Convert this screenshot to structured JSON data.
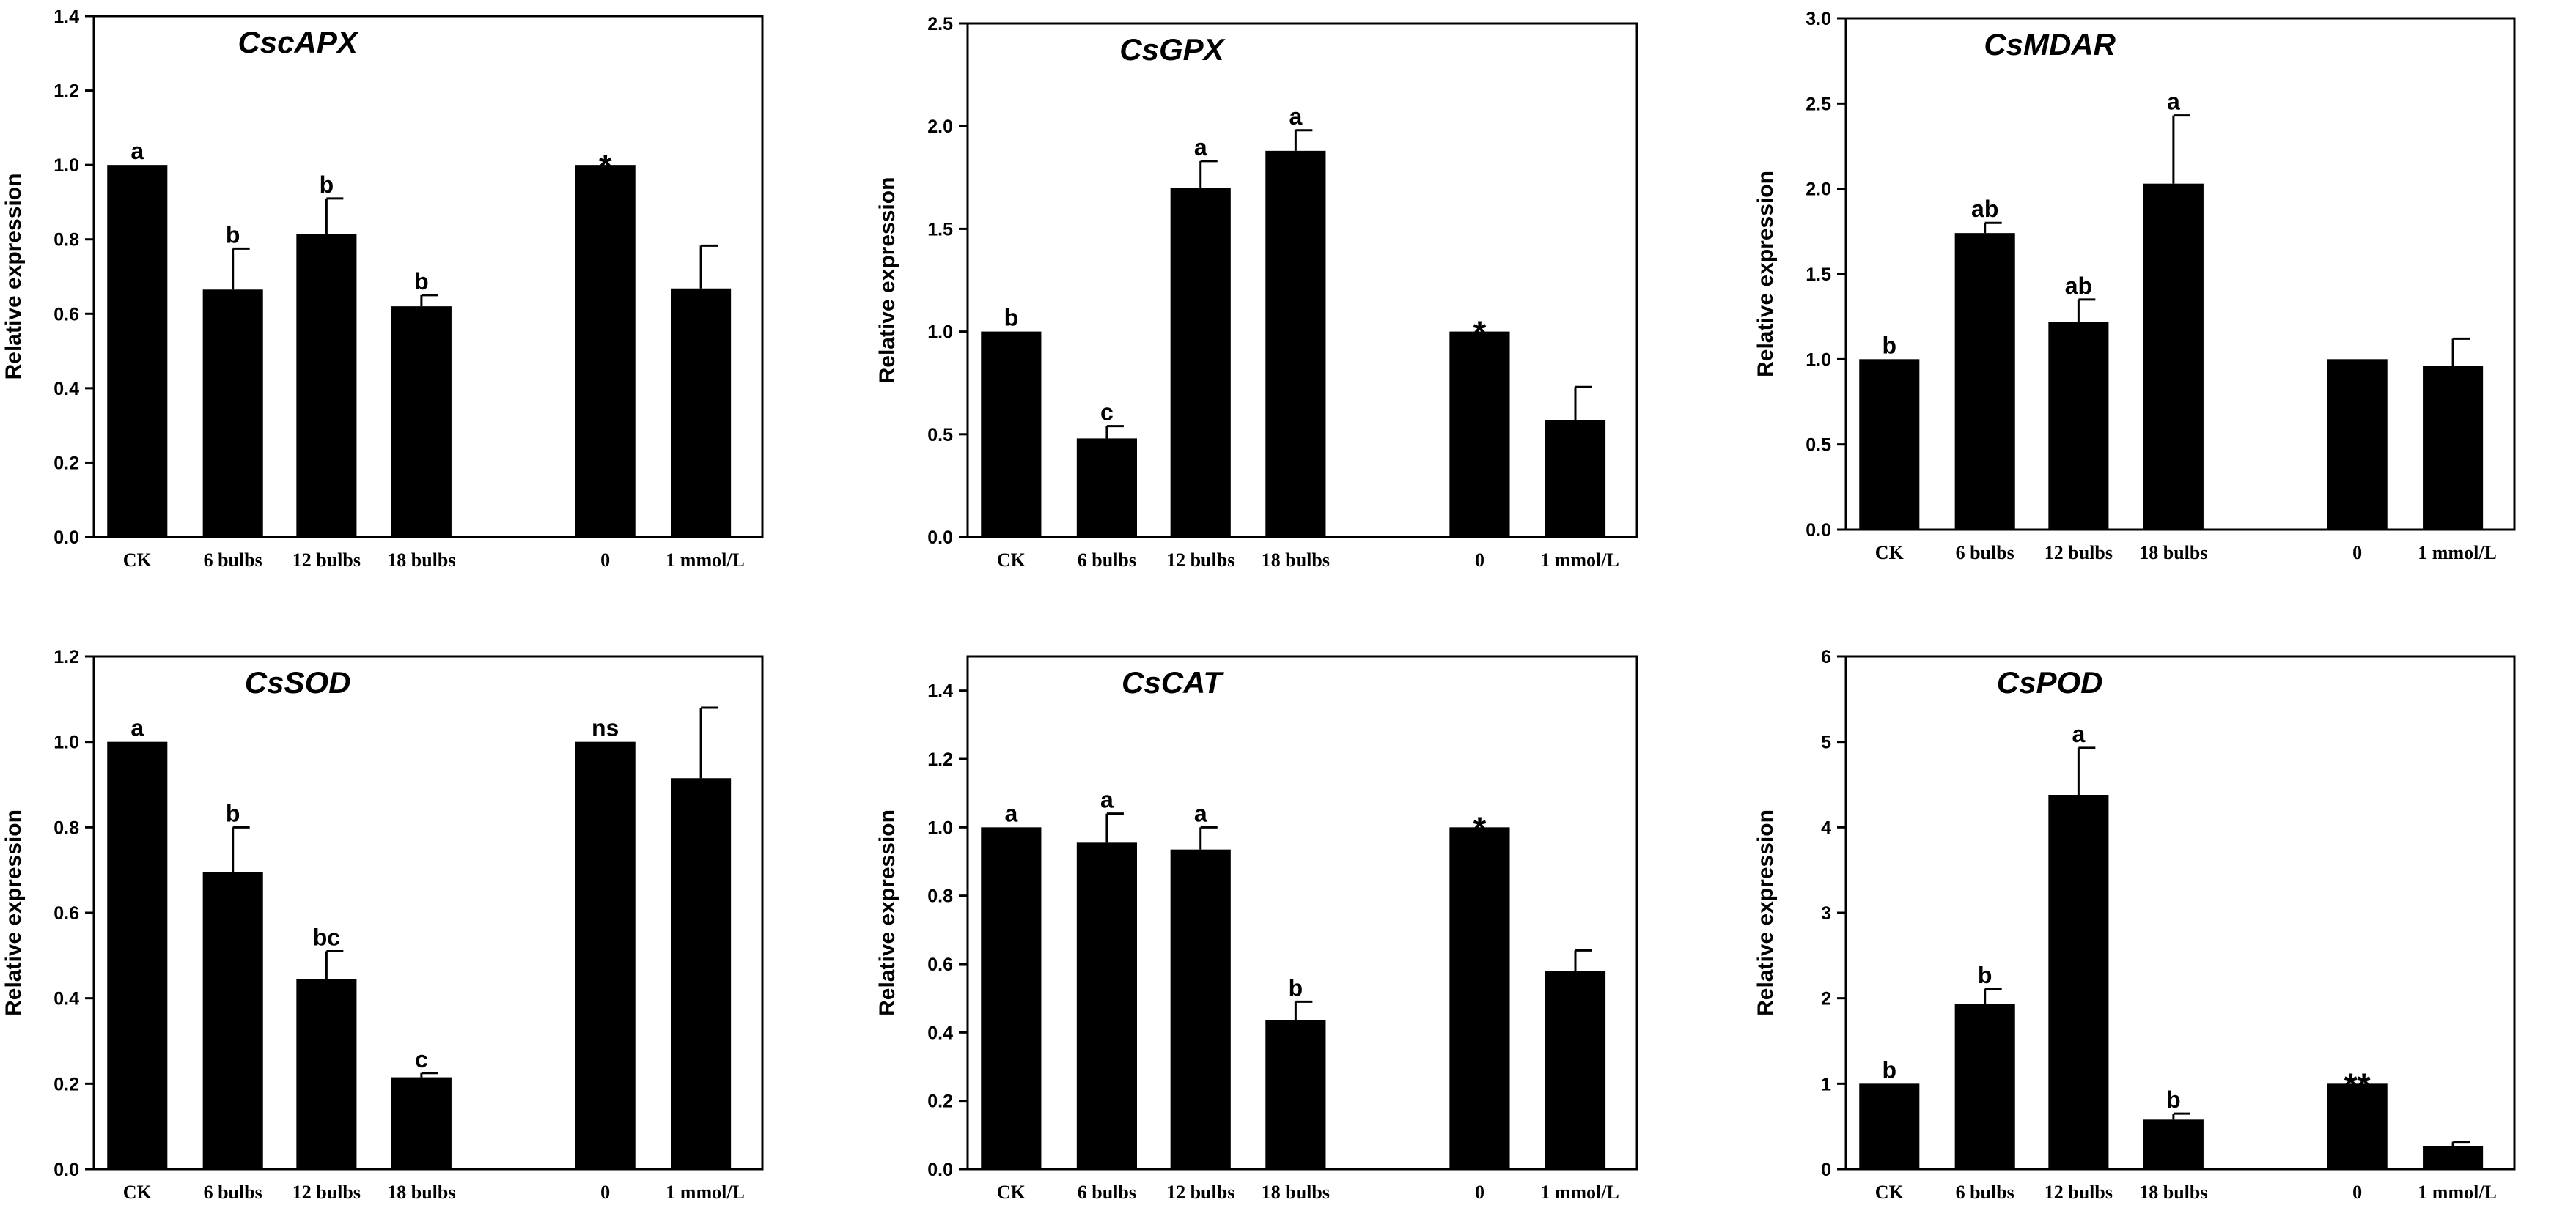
{
  "chart_data": [
    {
      "type": "bar",
      "title": "CscAPX",
      "xlabel": "",
      "ylabel": "Relative expression",
      "ylim": [
        0,
        1.4
      ],
      "yticks": [
        "0.0",
        "0.2",
        "0.4",
        "0.6",
        "0.8",
        "1.0",
        "1.2",
        "1.4"
      ],
      "categories": [
        "CK",
        "6 bulbs",
        "12 bulbs",
        "18 bulbs",
        "0",
        "1 mmol/L"
      ],
      "values": [
        1.0,
        0.665,
        0.815,
        0.62,
        1.0,
        0.668
      ],
      "errors": [
        0.0,
        0.11,
        0.095,
        0.03,
        0.0,
        0.115
      ],
      "labels": [
        "a",
        "b",
        "b",
        "b",
        "*",
        ""
      ]
    },
    {
      "type": "bar",
      "title": "CsGPX",
      "xlabel": "",
      "ylabel": "Relative expression",
      "ylim": [
        0,
        2.5
      ],
      "yticks": [
        "0.0",
        "0.5",
        "1.0",
        "1.5",
        "2.0",
        "2.5"
      ],
      "categories": [
        "CK",
        "6 bulbs",
        "12 bulbs",
        "18 bulbs",
        "0",
        "1 mmol/L"
      ],
      "values": [
        1.0,
        0.48,
        1.7,
        1.88,
        1.0,
        0.57
      ],
      "errors": [
        0.0,
        0.06,
        0.13,
        0.1,
        0.0,
        0.16
      ],
      "labels": [
        "b",
        "c",
        "a",
        "a",
        "*",
        ""
      ]
    },
    {
      "type": "bar",
      "title": "CsMDAR",
      "xlabel": "",
      "ylabel": "Relative expression",
      "ylim": [
        0,
        3.0
      ],
      "yticks": [
        "0.0",
        "0.5",
        "1.0",
        "1.5",
        "2.0",
        "2.5",
        "3.0"
      ],
      "categories": [
        "CK",
        "6 bulbs",
        "12 bulbs",
        "18 bulbs",
        "0",
        "1 mmol/L"
      ],
      "values": [
        1.0,
        1.74,
        1.22,
        2.03,
        1.0,
        0.96
      ],
      "errors": [
        0.0,
        0.06,
        0.13,
        0.4,
        0.0,
        0.16
      ],
      "labels": [
        "b",
        "ab",
        "ab",
        "a",
        "",
        ""
      ]
    },
    {
      "type": "bar",
      "title": "CsSOD",
      "xlabel": "",
      "ylabel": "Relative expression",
      "ylim": [
        0,
        1.2
      ],
      "yticks": [
        "0.0",
        "0.2",
        "0.4",
        "0.6",
        "0.8",
        "1.0",
        "1.2"
      ],
      "categories": [
        "CK",
        "6 bulbs",
        "12 bulbs",
        "18 bulbs",
        "0",
        "1 mmol/L"
      ],
      "values": [
        1.0,
        0.695,
        0.445,
        0.215,
        1.0,
        0.915
      ],
      "errors": [
        0.0,
        0.105,
        0.065,
        0.01,
        0.0,
        0.165
      ],
      "labels": [
        "a",
        "b",
        "bc",
        "c",
        "ns",
        ""
      ]
    },
    {
      "type": "bar",
      "title": "CsCAT",
      "xlabel": "",
      "ylabel": "Relative expression",
      "ylim": [
        0,
        1.5
      ],
      "yticks": [
        "0.0",
        "0.2",
        "0.4",
        "0.6",
        "0.8",
        "1.0",
        "1.2",
        "1.4"
      ],
      "categories": [
        "CK",
        "6 bulbs",
        "12 bulbs",
        "18 bulbs",
        "0",
        "1 mmol/L"
      ],
      "values": [
        1.0,
        0.955,
        0.935,
        0.435,
        1.0,
        0.58
      ],
      "errors": [
        0.0,
        0.085,
        0.065,
        0.055,
        0.0,
        0.06
      ],
      "labels": [
        "a",
        "a",
        "a",
        "b",
        "*",
        ""
      ]
    },
    {
      "type": "bar",
      "title": "CsPOD",
      "xlabel": "",
      "ylabel": "Relative expression",
      "ylim": [
        0,
        6
      ],
      "yticks": [
        "0",
        "1",
        "2",
        "3",
        "4",
        "5",
        "6"
      ],
      "categories": [
        "CK",
        "6 bulbs",
        "12 bulbs",
        "18 bulbs",
        "0",
        "1 mmol/L"
      ],
      "values": [
        1.0,
        1.93,
        4.38,
        0.58,
        1.0,
        0.27
      ],
      "errors": [
        0.0,
        0.18,
        0.55,
        0.07,
        0.0,
        0.05
      ],
      "labels": [
        "b",
        "b",
        "a",
        "b",
        "**",
        ""
      ]
    }
  ]
}
